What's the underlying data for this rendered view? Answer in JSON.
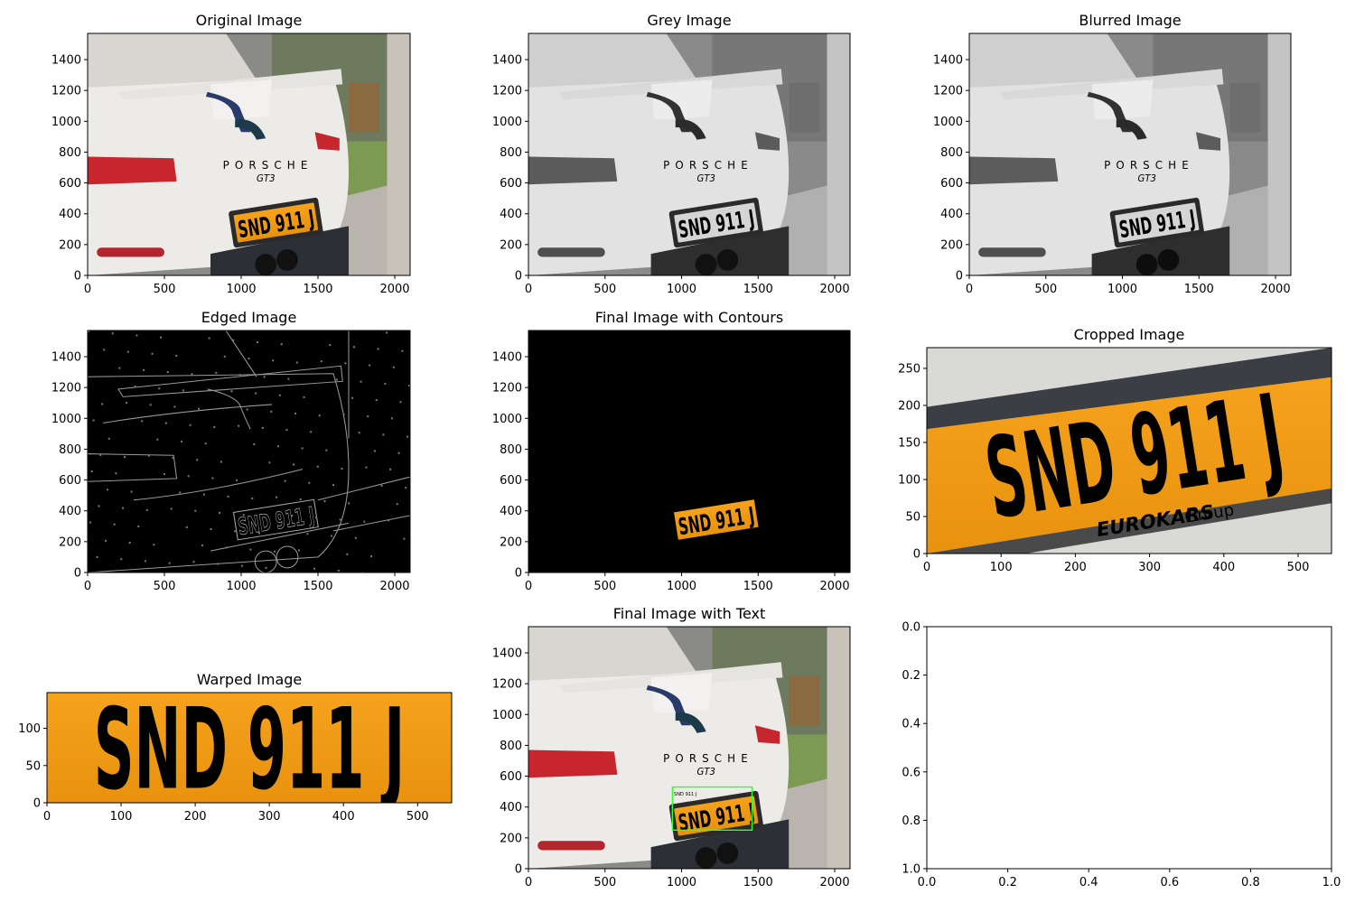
{
  "chart_data": [
    {
      "type": "image",
      "title": "Original Image",
      "x_ticks": [
        0,
        500,
        1000,
        1500,
        2000
      ],
      "y_ticks": [
        0,
        200,
        400,
        600,
        800,
        1000,
        1200,
        1400
      ],
      "xlim": [
        0,
        2100
      ],
      "ylim": [
        1570,
        0
      ],
      "content": "color photo of white Porsche GT3 rear with orange plate",
      "plate_text": "SND 911 J",
      "badge_text": "PORSCHE",
      "model_text": "GT3"
    },
    {
      "type": "image",
      "title": "Grey Image",
      "x_ticks": [
        0,
        500,
        1000,
        1500,
        2000
      ],
      "y_ticks": [
        0,
        200,
        400,
        600,
        800,
        1000,
        1200,
        1400
      ],
      "xlim": [
        0,
        2100
      ],
      "ylim": [
        1570,
        0
      ],
      "content": "greyscale version of the photo",
      "plate_text": "SND 911 J",
      "badge_text": "PORSCHE",
      "model_text": "GT3"
    },
    {
      "type": "image",
      "title": "Blurred Image",
      "x_ticks": [
        0,
        500,
        1000,
        1500,
        2000
      ],
      "y_ticks": [
        0,
        200,
        400,
        600,
        800,
        1000,
        1200,
        1400
      ],
      "xlim": [
        0,
        2100
      ],
      "ylim": [
        1570,
        0
      ],
      "content": "blurred greyscale photo",
      "plate_text": "SND 911 J",
      "badge_text": "PORSCHE",
      "model_text": "GT3"
    },
    {
      "type": "image",
      "title": "Edged Image",
      "x_ticks": [
        0,
        500,
        1000,
        1500,
        2000
      ],
      "y_ticks": [
        0,
        200,
        400,
        600,
        800,
        1000,
        1200,
        1400
      ],
      "xlim": [
        0,
        2100
      ],
      "ylim": [
        1570,
        0
      ],
      "content": "edge detection output, white edges on black",
      "plate_text": "SND 911 J"
    },
    {
      "type": "image",
      "title": "Final Image with Contours",
      "x_ticks": [
        0,
        500,
        1000,
        1500,
        2000
      ],
      "y_ticks": [
        0,
        200,
        400,
        600,
        800,
        1000,
        1200,
        1400
      ],
      "xlim": [
        0,
        2100
      ],
      "ylim": [
        1570,
        0
      ],
      "content": "black background with masked license plate",
      "plate_text": "SND 911 J"
    },
    {
      "type": "image",
      "title": "Cropped Image",
      "x_ticks": [
        0,
        100,
        200,
        300,
        400,
        500
      ],
      "y_ticks": [
        0,
        50,
        100,
        150,
        200,
        250
      ],
      "xlim": [
        0,
        545
      ],
      "ylim": [
        278,
        0
      ],
      "content": "cropped plate region",
      "plate_text": "SND 911 J",
      "dealer_text": "EUROKARS",
      "dealer_sub": "Group"
    },
    {
      "type": "image",
      "title": "Warped Image",
      "x_ticks": [
        0,
        100,
        200,
        300,
        400,
        500
      ],
      "y_ticks": [
        0,
        50,
        100
      ],
      "xlim": [
        0,
        546
      ],
      "ylim": [
        148,
        0
      ],
      "content": "perspective-warped plate",
      "plate_text": "SND 911 J"
    },
    {
      "type": "image",
      "title": "Final Image with Text",
      "x_ticks": [
        0,
        500,
        1000,
        1500,
        2000
      ],
      "y_ticks": [
        0,
        200,
        400,
        600,
        800,
        1000,
        1200,
        1400
      ],
      "xlim": [
        0,
        2100
      ],
      "ylim": [
        1570,
        0
      ],
      "content": "color photo with green bounding box around plate",
      "plate_text": "SND 911 J",
      "badge_text": "PORSCHE",
      "model_text": "GT3",
      "box_color": "#33ff33"
    },
    {
      "type": "empty",
      "title": "",
      "x_ticks": [
        "0.0",
        "0.2",
        "0.4",
        "0.6",
        "0.8",
        "1.0"
      ],
      "y_ticks": [
        "0.0",
        "0.2",
        "0.4",
        "0.6",
        "0.8",
        "1.0"
      ],
      "xlim": [
        0,
        1
      ],
      "ylim": [
        0,
        1
      ]
    }
  ]
}
